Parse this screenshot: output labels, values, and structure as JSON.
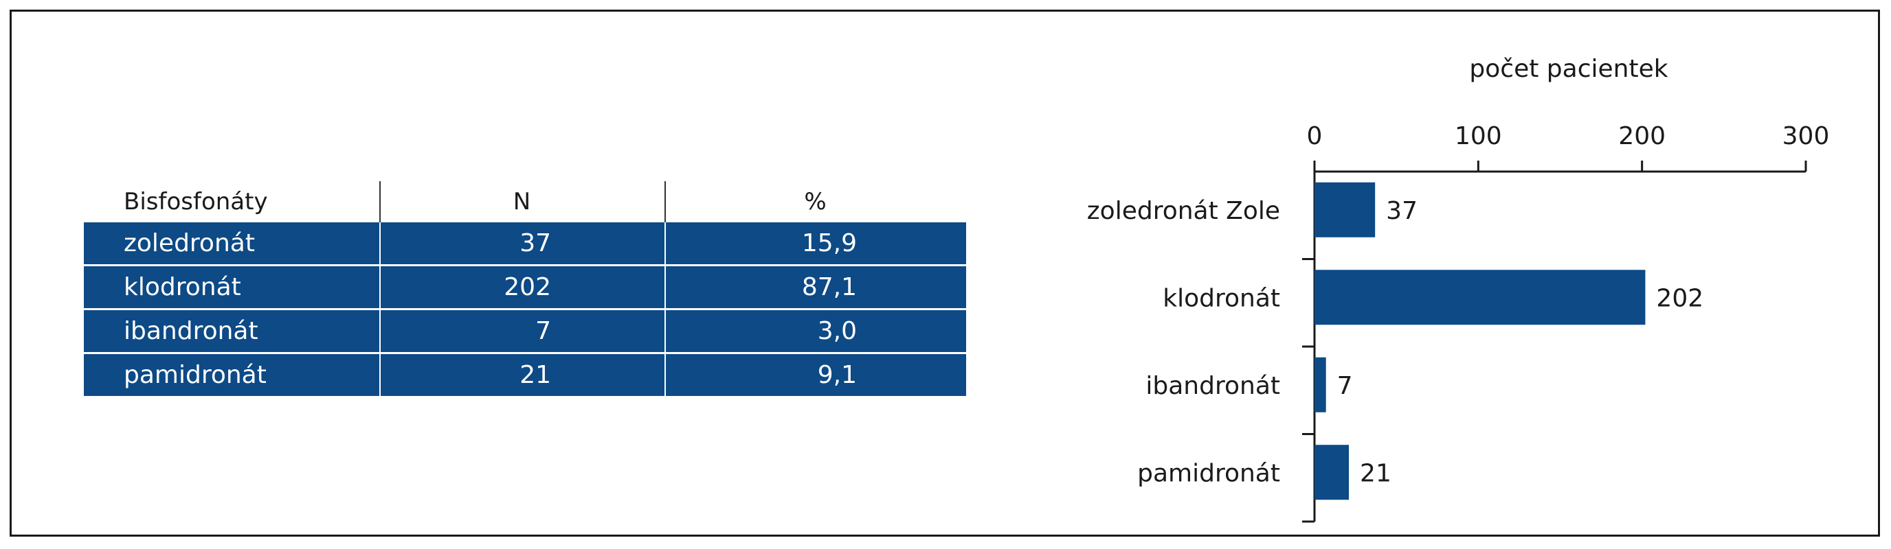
{
  "table": {
    "headers": [
      "Bisfosfonáty",
      "N",
      "%"
    ],
    "rows": [
      {
        "name": "zoledronát",
        "n": "37",
        "pct": "15,9"
      },
      {
        "name": "klodronát",
        "n": "202",
        "pct": "87,1"
      },
      {
        "name": "ibandronát",
        "n": "7",
        "pct": "3,0"
      },
      {
        "name": "pamidronát",
        "n": "21",
        "pct": "9,1"
      }
    ]
  },
  "chart_data": {
    "type": "bar",
    "orientation": "horizontal",
    "title": "počet pacientek",
    "xlabel": "počet pacientek",
    "ylabel": "",
    "xlim": [
      0,
      300
    ],
    "ticks": [
      0,
      100,
      200,
      300
    ],
    "tick_labels": [
      "0",
      "100",
      "200",
      "300"
    ],
    "axis_position": "top",
    "grid": false,
    "categories": [
      "zoledronát Zole",
      "klodronát",
      "ibandronát",
      "pamidronát"
    ],
    "values": [
      37,
      202,
      7,
      21
    ],
    "data_labels": [
      "37",
      "202",
      "7",
      "21"
    ],
    "bar_color": "#0d4a86"
  }
}
